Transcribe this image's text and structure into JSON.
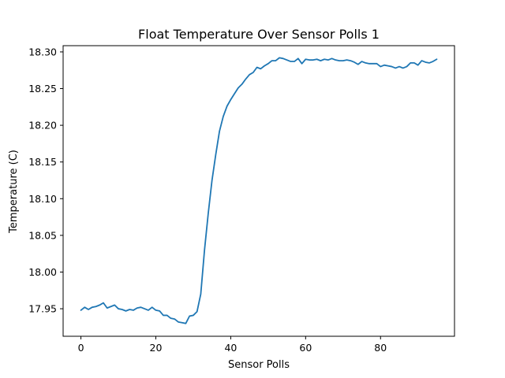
{
  "chart_data": {
    "type": "line",
    "title": "Float Temperature Over Sensor Polls 1",
    "xlabel": "Sensor Polls",
    "ylabel": "Temperature (C)",
    "xlim": [
      -4.75,
      99.75
    ],
    "ylim": [
      17.9125,
      18.3085
    ],
    "xticks": [
      0,
      20,
      40,
      60,
      80
    ],
    "xtick_labels": [
      "0",
      "20",
      "40",
      "60",
      "80"
    ],
    "yticks": [
      17.95,
      18.0,
      18.05,
      18.1,
      18.15,
      18.2,
      18.25,
      18.3
    ],
    "ytick_labels": [
      "17.95",
      "18.00",
      "18.05",
      "18.10",
      "18.15",
      "18.20",
      "18.25",
      "18.30"
    ],
    "grid": false,
    "series_color": "#1f77b4",
    "series": [
      {
        "x": [
          0,
          1,
          2,
          3,
          4,
          5,
          6,
          7,
          8,
          9,
          10,
          11,
          12,
          13,
          14,
          15,
          16,
          17,
          18,
          19,
          20,
          21,
          22,
          23,
          24,
          25,
          26,
          27,
          28,
          29,
          30,
          31,
          32,
          33,
          34,
          35,
          36,
          37,
          38,
          39,
          40,
          41,
          42,
          43,
          44,
          45,
          46,
          47,
          48,
          49,
          50,
          51,
          52,
          53,
          54,
          55,
          56,
          57,
          58,
          59,
          60,
          61,
          62,
          63,
          64,
          65,
          66,
          67,
          68,
          69,
          70,
          71,
          72,
          73,
          74,
          75,
          76,
          77,
          78,
          79,
          80,
          81,
          82,
          83,
          84,
          85,
          86,
          87,
          88,
          89,
          90,
          91,
          92,
          93,
          94,
          95
        ],
        "y": [
          17.948,
          17.952,
          17.949,
          17.952,
          17.953,
          17.955,
          17.958,
          17.951,
          17.953,
          17.955,
          17.95,
          17.949,
          17.947,
          17.949,
          17.948,
          17.951,
          17.952,
          17.95,
          17.948,
          17.952,
          17.948,
          17.947,
          17.941,
          17.941,
          17.937,
          17.936,
          17.932,
          17.931,
          17.93,
          17.94,
          17.941,
          17.946,
          17.97,
          18.03,
          18.08,
          18.125,
          18.16,
          18.192,
          18.212,
          18.226,
          18.235,
          18.243,
          18.251,
          18.256,
          18.263,
          18.269,
          18.272,
          18.279,
          18.277,
          18.281,
          18.284,
          18.288,
          18.288,
          18.292,
          18.291,
          18.289,
          18.287,
          18.287,
          18.291,
          18.284,
          18.29,
          18.289,
          18.289,
          18.29,
          18.288,
          18.29,
          18.289,
          18.291,
          18.289,
          18.288,
          18.288,
          18.289,
          18.288,
          18.286,
          18.283,
          18.287,
          18.285,
          18.284,
          18.284,
          18.284,
          18.28,
          18.282,
          18.281,
          18.28,
          18.278,
          18.28,
          18.278,
          18.28,
          18.285,
          18.285,
          18.282,
          18.288,
          18.286,
          18.285,
          18.287,
          18.29
        ]
      }
    ]
  }
}
